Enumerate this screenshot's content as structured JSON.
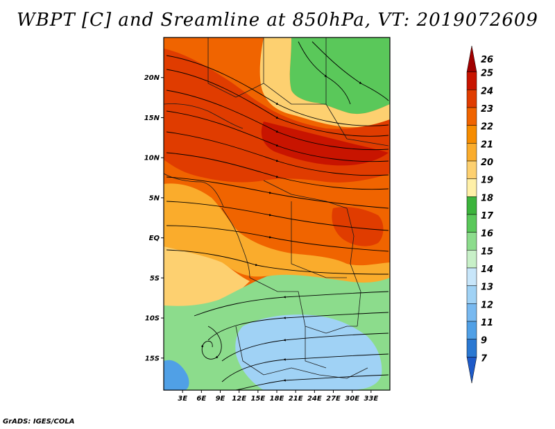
{
  "title": "WBPT [C] and Sreamline at 850hPa, VT: 2019072609",
  "footer": "GrADS: IGES/COLA",
  "map": {
    "lon_range": [
      0,
      36
    ],
    "lat_range": [
      -19,
      25
    ],
    "lat_ticks": [
      {
        "value": 20,
        "label": "20N"
      },
      {
        "value": 15,
        "label": "15N"
      },
      {
        "value": 10,
        "label": "10N"
      },
      {
        "value": 5,
        "label": "5N"
      },
      {
        "value": 0,
        "label": "EQ"
      },
      {
        "value": -5,
        "label": "5S"
      },
      {
        "value": -10,
        "label": "10S"
      },
      {
        "value": -15,
        "label": "15S"
      }
    ],
    "lon_ticks": [
      {
        "value": 3,
        "label": "3E"
      },
      {
        "value": 6,
        "label": "6E"
      },
      {
        "value": 9,
        "label": "9E"
      },
      {
        "value": 12,
        "label": "12E"
      },
      {
        "value": 15,
        "label": "15E"
      },
      {
        "value": 18,
        "label": "18E"
      },
      {
        "value": 21,
        "label": "21E"
      },
      {
        "value": 24,
        "label": "24E"
      },
      {
        "value": 27,
        "label": "27E"
      },
      {
        "value": 30,
        "label": "30E"
      },
      {
        "value": 33,
        "label": "33E"
      }
    ]
  },
  "colorbar": {
    "levels": [
      "26",
      "25",
      "24",
      "23",
      "22",
      "21",
      "20",
      "19",
      "18",
      "17",
      "16",
      "15",
      "14",
      "13",
      "12",
      "11",
      "9",
      "7"
    ],
    "colors": [
      "#a00000",
      "#c81400",
      "#e03c00",
      "#f06400",
      "#f68c00",
      "#faac2c",
      "#fdd070",
      "#fff0a8",
      "#3cb43c",
      "#5ac85a",
      "#8cdc8c",
      "#c8f0c8",
      "#c8e6fa",
      "#a0d2f5",
      "#78b9f0",
      "#50a0e6",
      "#2a78d2",
      "#1e5ac8"
    ]
  },
  "regions": [
    {
      "name": "north-green-region",
      "color": "#5ac85a"
    },
    {
      "name": "northeast-cream-band",
      "color": "#fdd070"
    },
    {
      "name": "central-red-band",
      "color": "#e03c00"
    },
    {
      "name": "dark-red-core",
      "color": "#c81400"
    },
    {
      "name": "west-orange-region",
      "color": "#faac2c"
    },
    {
      "name": "southwest-cream-region",
      "color": "#fdd070"
    },
    {
      "name": "south-green-region",
      "color": "#8cdc8c"
    },
    {
      "name": "south-blue-region",
      "color": "#a0d2f5"
    }
  ]
}
